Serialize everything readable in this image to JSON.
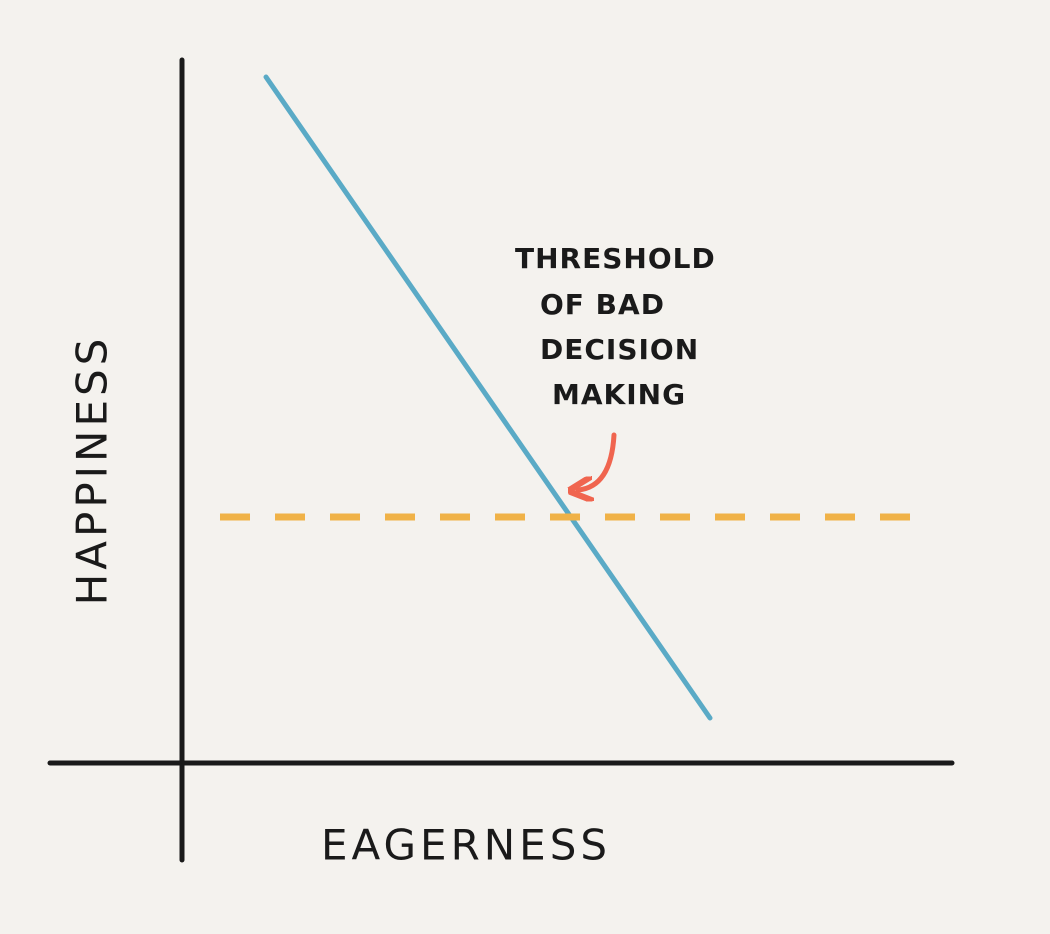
{
  "axes": {
    "x_label": "EAGERNESS",
    "y_label": "HAPPINESS"
  },
  "annotation": {
    "lines": [
      "THRESHOLD",
      "OF BAD",
      "DECISION",
      "MAKING"
    ]
  }
}
